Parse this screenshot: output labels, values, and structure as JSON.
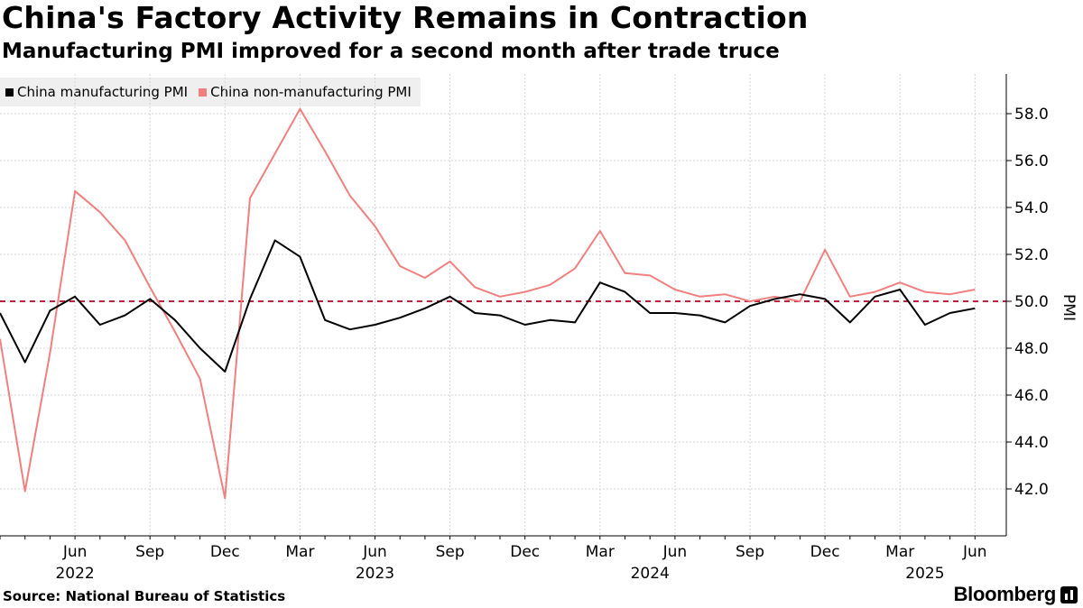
{
  "header": {
    "title": "China's Factory Activity Remains in Contraction",
    "subtitle": "Manufacturing PMI improved for a second month after trade truce"
  },
  "footer": {
    "source": "Source: National Bureau of Statistics",
    "brand": "Bloomberg"
  },
  "chart_data": {
    "type": "line",
    "title": "China's Factory Activity Remains in Contraction",
    "subtitle": "Manufacturing PMI improved for a second month after trade truce",
    "ylabel": "PMI",
    "xlabel": "",
    "ylim": [
      40,
      60
    ],
    "yticks": [
      42.0,
      44.0,
      46.0,
      48.0,
      50.0,
      52.0,
      54.0,
      56.0,
      58.0
    ],
    "ytick_labels": [
      "42.0",
      "44.0",
      "46.0",
      "48.0",
      "50.0",
      "52.0",
      "54.0",
      "56.0",
      "58.0"
    ],
    "y_axis_position": "right",
    "grid": true,
    "legend_position": "top-left",
    "reference_line": {
      "y": 50.0,
      "style": "dashed",
      "color": "#b8243c"
    },
    "x": [
      "2022-03",
      "2022-04",
      "2022-05",
      "2022-06",
      "2022-07",
      "2022-08",
      "2022-09",
      "2022-10",
      "2022-11",
      "2022-12",
      "2023-01",
      "2023-02",
      "2023-03",
      "2023-04",
      "2023-05",
      "2023-06",
      "2023-07",
      "2023-08",
      "2023-09",
      "2023-10",
      "2023-11",
      "2023-12",
      "2024-01",
      "2024-02",
      "2024-03",
      "2024-04",
      "2024-05",
      "2024-06",
      "2024-07",
      "2024-08",
      "2024-09",
      "2024-10",
      "2024-11",
      "2024-12",
      "2025-01",
      "2025-02",
      "2025-03",
      "2025-04",
      "2025-05",
      "2025-06"
    ],
    "month_ticks": [
      {
        "x": "2022-06",
        "label": "Jun"
      },
      {
        "x": "2022-09",
        "label": "Sep"
      },
      {
        "x": "2022-12",
        "label": "Dec"
      },
      {
        "x": "2023-03",
        "label": "Mar"
      },
      {
        "x": "2023-06",
        "label": "Jun"
      },
      {
        "x": "2023-09",
        "label": "Sep"
      },
      {
        "x": "2023-12",
        "label": "Dec"
      },
      {
        "x": "2024-03",
        "label": "Mar"
      },
      {
        "x": "2024-06",
        "label": "Jun"
      },
      {
        "x": "2024-09",
        "label": "Sep"
      },
      {
        "x": "2024-12",
        "label": "Dec"
      },
      {
        "x": "2025-03",
        "label": "Mar"
      },
      {
        "x": "2025-06",
        "label": "Jun"
      }
    ],
    "year_ticks": [
      {
        "x": "2022-06",
        "label": "2022"
      },
      {
        "x": "2023-06",
        "label": "2023"
      },
      {
        "x": "2024-05",
        "label": "2024"
      },
      {
        "x": "2025-04",
        "label": "2025"
      }
    ],
    "series": [
      {
        "name": "China manufacturing PMI",
        "color": "#000000",
        "values": [
          49.5,
          47.4,
          49.6,
          50.2,
          49.0,
          49.4,
          50.1,
          49.2,
          48.0,
          47.0,
          50.1,
          52.6,
          51.9,
          49.2,
          48.8,
          49.0,
          49.3,
          49.7,
          50.2,
          49.5,
          49.4,
          49.0,
          49.2,
          49.1,
          50.8,
          50.4,
          49.5,
          49.5,
          49.4,
          49.1,
          49.8,
          50.1,
          50.3,
          50.1,
          49.1,
          50.2,
          50.5,
          49.0,
          49.5,
          49.7
        ]
      },
      {
        "name": "China non-manufacturing PMI",
        "color": "#f08080",
        "values": [
          48.4,
          41.9,
          47.8,
          54.7,
          53.8,
          52.6,
          50.6,
          48.7,
          46.7,
          41.6,
          54.4,
          56.3,
          58.2,
          56.4,
          54.5,
          53.2,
          51.5,
          51.0,
          51.7,
          50.6,
          50.2,
          50.4,
          50.7,
          51.4,
          53.0,
          51.2,
          51.1,
          50.5,
          50.2,
          50.3,
          50.0,
          50.2,
          50.0,
          52.2,
          50.2,
          50.4,
          50.8,
          50.4,
          50.3,
          50.5
        ]
      }
    ]
  }
}
